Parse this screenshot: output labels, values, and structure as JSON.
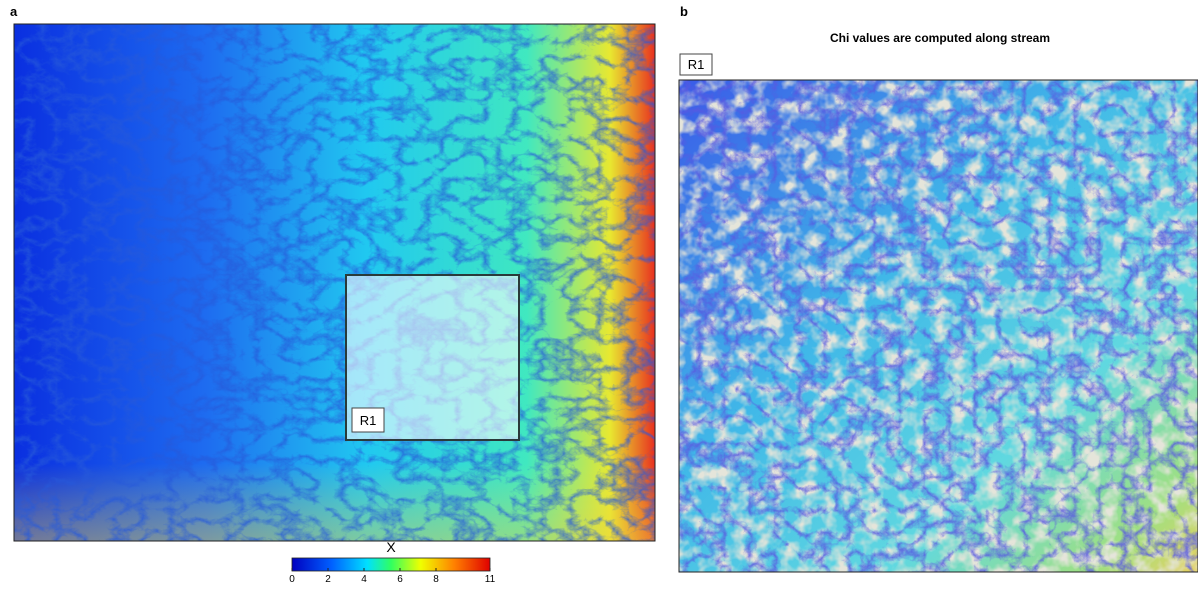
{
  "panel_a": {
    "label": "a",
    "region_label": "R1"
  },
  "panel_b": {
    "label": "b",
    "title": "Chi  values are computed along stream",
    "region_label": "R1"
  },
  "colorbar": {
    "label": "X",
    "ticks": [
      0,
      2,
      4,
      6,
      8,
      11
    ]
  }
}
